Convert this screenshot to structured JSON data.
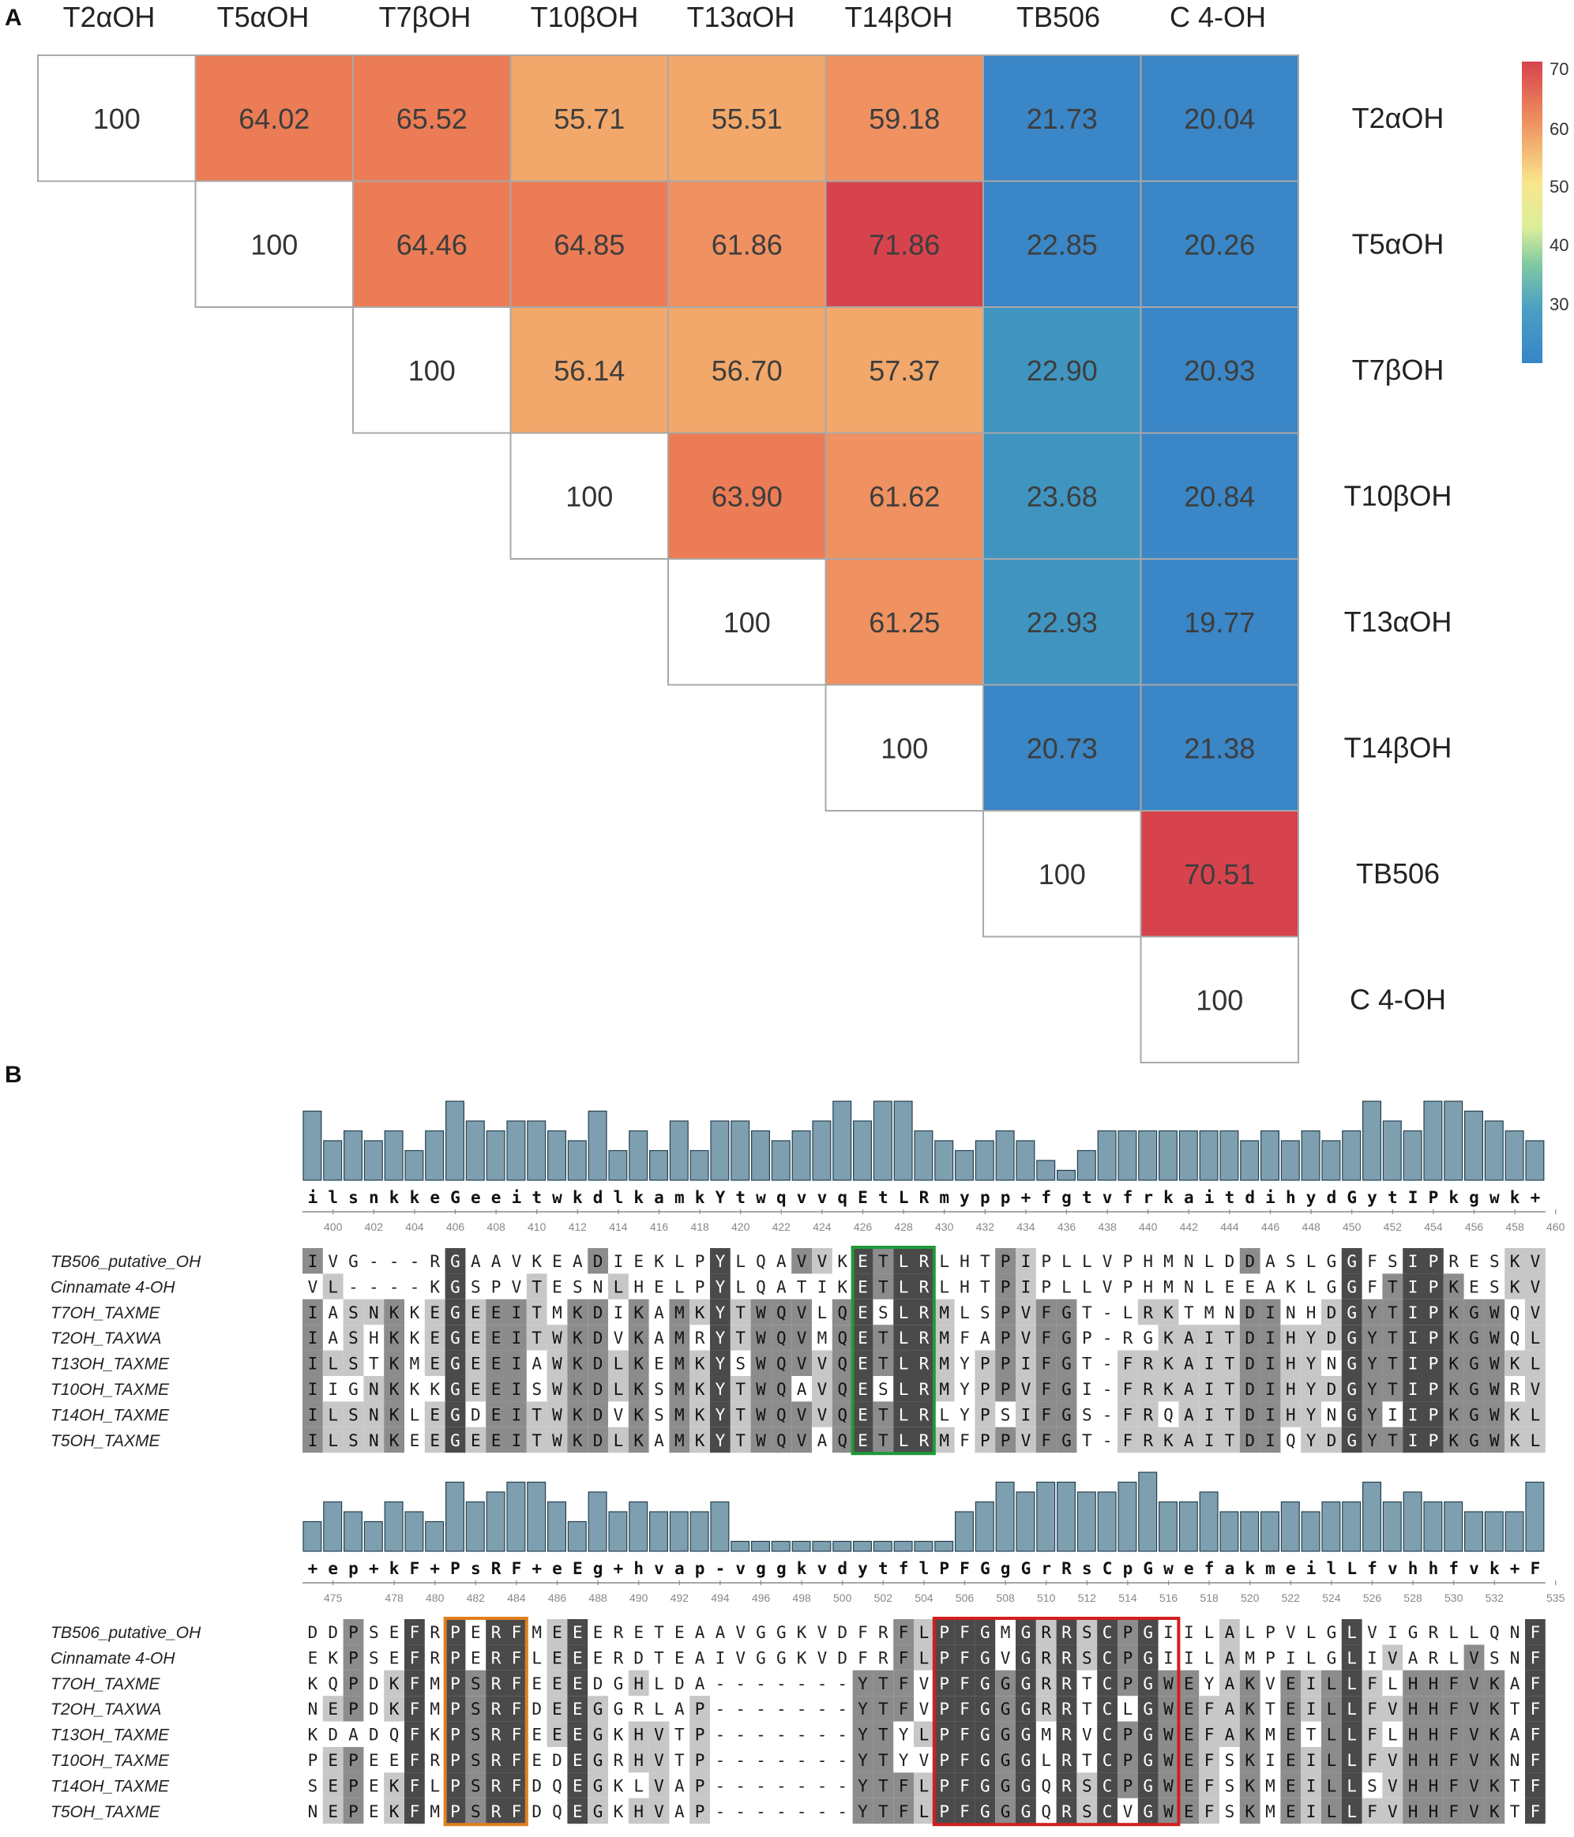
{
  "figure": {
    "panel_a_label": "A",
    "panel_b_label": "B"
  },
  "colors": {
    "scale": [
      "#3a86c6",
      "#3f95c0",
      "#50a7b4",
      "#f4d36f",
      "#fad985",
      "#f7c07c",
      "#f2a86a",
      "#ef9160",
      "#ec7c55",
      "#d6434d"
    ],
    "cell_border": "#a8a8a8",
    "bar_fill": "#7d9fb0",
    "bar_stroke": "#25404f",
    "shade_dark": "#4a4a4a",
    "shade_mid": "#8c8c8c",
    "shade_light": "#c7c7c7",
    "box_green": "#1f9a3a",
    "box_orange": "#e07f20",
    "box_red": "#d11f1f"
  },
  "chart_data": [
    {
      "type": "heatmap",
      "title": "",
      "col_labels": [
        "T2αOH",
        "T5αOH",
        "T7βOH",
        "T10βOH",
        "T13αOH",
        "T14βOH",
        "TB506",
        "C 4-OH"
      ],
      "row_labels": [
        "T2αOH",
        "T5αOH",
        "T7βOH",
        "T10βOH",
        "T13αOH",
        "T14βOH",
        "TB506",
        "C 4-OH"
      ],
      "values": [
        [
          "100",
          "64.02",
          "65.52",
          "55.71",
          "55.51",
          "59.18",
          "21.73",
          "20.04"
        ],
        [
          null,
          "100",
          "64.46",
          "64.85",
          "61.86",
          "71.86",
          "22.85",
          "20.26"
        ],
        [
          null,
          null,
          "100",
          "56.14",
          "56.70",
          "57.37",
          "22.90",
          "20.93"
        ],
        [
          null,
          null,
          null,
          "100",
          "63.90",
          "61.62",
          "23.68",
          "20.84"
        ],
        [
          null,
          null,
          null,
          null,
          "100",
          "61.25",
          "22.93",
          "19.77"
        ],
        [
          null,
          null,
          null,
          null,
          null,
          "100",
          "20.73",
          "21.38"
        ],
        [
          null,
          null,
          null,
          null,
          null,
          null,
          "100",
          "70.51"
        ],
        [
          null,
          null,
          null,
          null,
          null,
          null,
          null,
          "100"
        ]
      ],
      "colorbar": {
        "ticks": [
          "70",
          "60",
          "50",
          "40",
          "30"
        ],
        "range": [
          20,
          72
        ]
      },
      "legend": "right"
    },
    {
      "type": "table",
      "title": "",
      "blocks": [
        {
          "start": 399,
          "ticks": [
            "400",
            "402",
            "404",
            "406",
            "408",
            "410",
            "412",
            "414",
            "416",
            "418",
            "420",
            "422",
            "424",
            "426",
            "428",
            "430",
            "432",
            "434",
            "436",
            "438",
            "440",
            "442",
            "444",
            "446",
            "448",
            "450",
            "452",
            "454",
            "456",
            "458",
            "460"
          ],
          "consensus": "ilsnkkeGeeitwkdlkamkYtwqvvqEtLRmypp+fgtvfrkaitdihydGytIPkgwk+",
          "conservation": [
            7,
            4,
            5,
            4,
            5,
            3,
            5,
            8,
            6,
            5,
            6,
            6,
            5,
            4,
            7,
            3,
            5,
            3,
            6,
            3,
            6,
            6,
            5,
            4,
            5,
            6,
            8,
            6,
            8,
            8,
            5,
            4,
            3,
            4,
            5,
            4,
            2,
            1,
            3,
            5,
            5,
            5,
            5,
            5,
            5,
            5,
            4,
            5,
            4,
            5,
            4,
            5,
            8,
            6,
            5,
            8,
            8,
            7,
            6,
            5,
            4
          ],
          "names": [
            "TB506_putative_OH",
            "Cinnamate 4-OH",
            "T7OH_TAXME",
            "T2OH_TAXWA",
            "T13OH_TAXME",
            "T10OH_TAXME",
            "T14OH_TAXME",
            "T5OH_TAXME"
          ],
          "sequences": [
            "IVG---RGAAVKEADIEKLPYLQAVVKETLRLHTPIPLLVPHMNLDDASLGGFSIPRESKV",
            "VL----KGSPVTESNLHELPYLQATIKETLRLHTPIPLLVPHMNLEEAKLGGFTIPKESKV",
            "IASNKKEGEEITMKDIKAMKYTWQVLQESLRMLSPVFGT-LRKTMNDINHDGYTIPKGWQV",
            "IASHKKEGEEITWKDVKAMRYTWQVMQETLRMFAPVFGP-RGKAITDIHYDGYTIPKGWQL",
            "ILSTKMEGEEIAWKDLKEMKYSWQVVQETLRMYPPIFGT-FRKAITDIHYNGYTIPKGWKL",
            "IIGNKKKGEEISWKDLKSMKYTWQAVQESLRMYPPVFGI-FRKAITDIHYDGYTIPKGWRV",
            "ILSNKLEGDEITWKDVKSMKYTWQVVQETLRLYPSIFGS-FRQAITDIHYNGYIIPKGWKL",
            "ILSNKEEGEEITWKDLKAMKYTWQVAQETLRMFPPVFGT-FRKAITDIQYDGYTIPKGWKL"
          ]
        },
        {
          "start": 474,
          "ticks": [
            "475",
            "478",
            "480",
            "482",
            "484",
            "486",
            "488",
            "490",
            "492",
            "494",
            "496",
            "498",
            "500",
            "502",
            "504",
            "506",
            "508",
            "510",
            "512",
            "514",
            "516",
            "518",
            "520",
            "522",
            "524",
            "526",
            "528",
            "530",
            "532",
            "535"
          ],
          "consensus": "+ep+kF+PsRF+eEg+hvap-vggkvdytflPFGgGrRsCpGwefakmeilLfvhhfvk+F",
          "conservation": [
            3,
            5,
            4,
            3,
            5,
            4,
            3,
            7,
            5,
            6,
            7,
            7,
            5,
            3,
            6,
            4,
            5,
            4,
            4,
            4,
            5,
            1,
            1,
            1,
            1,
            1,
            1,
            1,
            1,
            1,
            1,
            1,
            4,
            5,
            7,
            6,
            7,
            7,
            6,
            6,
            7,
            8,
            5,
            5,
            6,
            4,
            4,
            4,
            5,
            4,
            5,
            5,
            7,
            5,
            6,
            5,
            5,
            4,
            4,
            4,
            7
          ],
          "names": [
            "TB506_putative_OH",
            "Cinnamate 4-OH",
            "T7OH_TAXME",
            "T2OH_TAXWA",
            "T13OH_TAXME",
            "T10OH_TAXME",
            "T14OH_TAXME",
            "T5OH_TAXME"
          ],
          "sequences": [
            "DDPSEFRPERFMEEERETEAAVGGKVDFRFLPFGMGRRSCPGIILALPVLGLVIGRLLQNF",
            "EKPSEFRPERFLEEERDTEAIVGGKVDFRFLPFGVGRRSCPGIILAMPILGLIVARLVSNF",
            "KQPDKFMPSRFEEEDGHLDA-------YTFVPFGGGRRTCPGWEYAKVEILLFLHHFVKAF",
            "NEPDKFMPSRFDEEGGRLAP-------YTFVPFGGGRRTCLGWEFAKTEILLFVHHFVKTF",
            "KDADQFKPSRFEEEGKHVTP-------YTYLPFGGGMRVCPGWEFAKMETLLFLHHFVKAF",
            "PEPEEFRPSRFEDEGRHVTP-------YTYVPFGGGLRTCPGWEFSKIEILLFVHHFVKNF",
            "SEPEKFLPSRFDQEGKLVAP-------YTFLPFGGGQRSCPGWEFSKMEILLSVHHFVKTF",
            "NEPEKFMPSRFDQEGKHVAP-------YTFLPFGGGQRSCVGWEFSKMEILLFVHHFVKTF"
          ]
        }
      ]
    }
  ]
}
